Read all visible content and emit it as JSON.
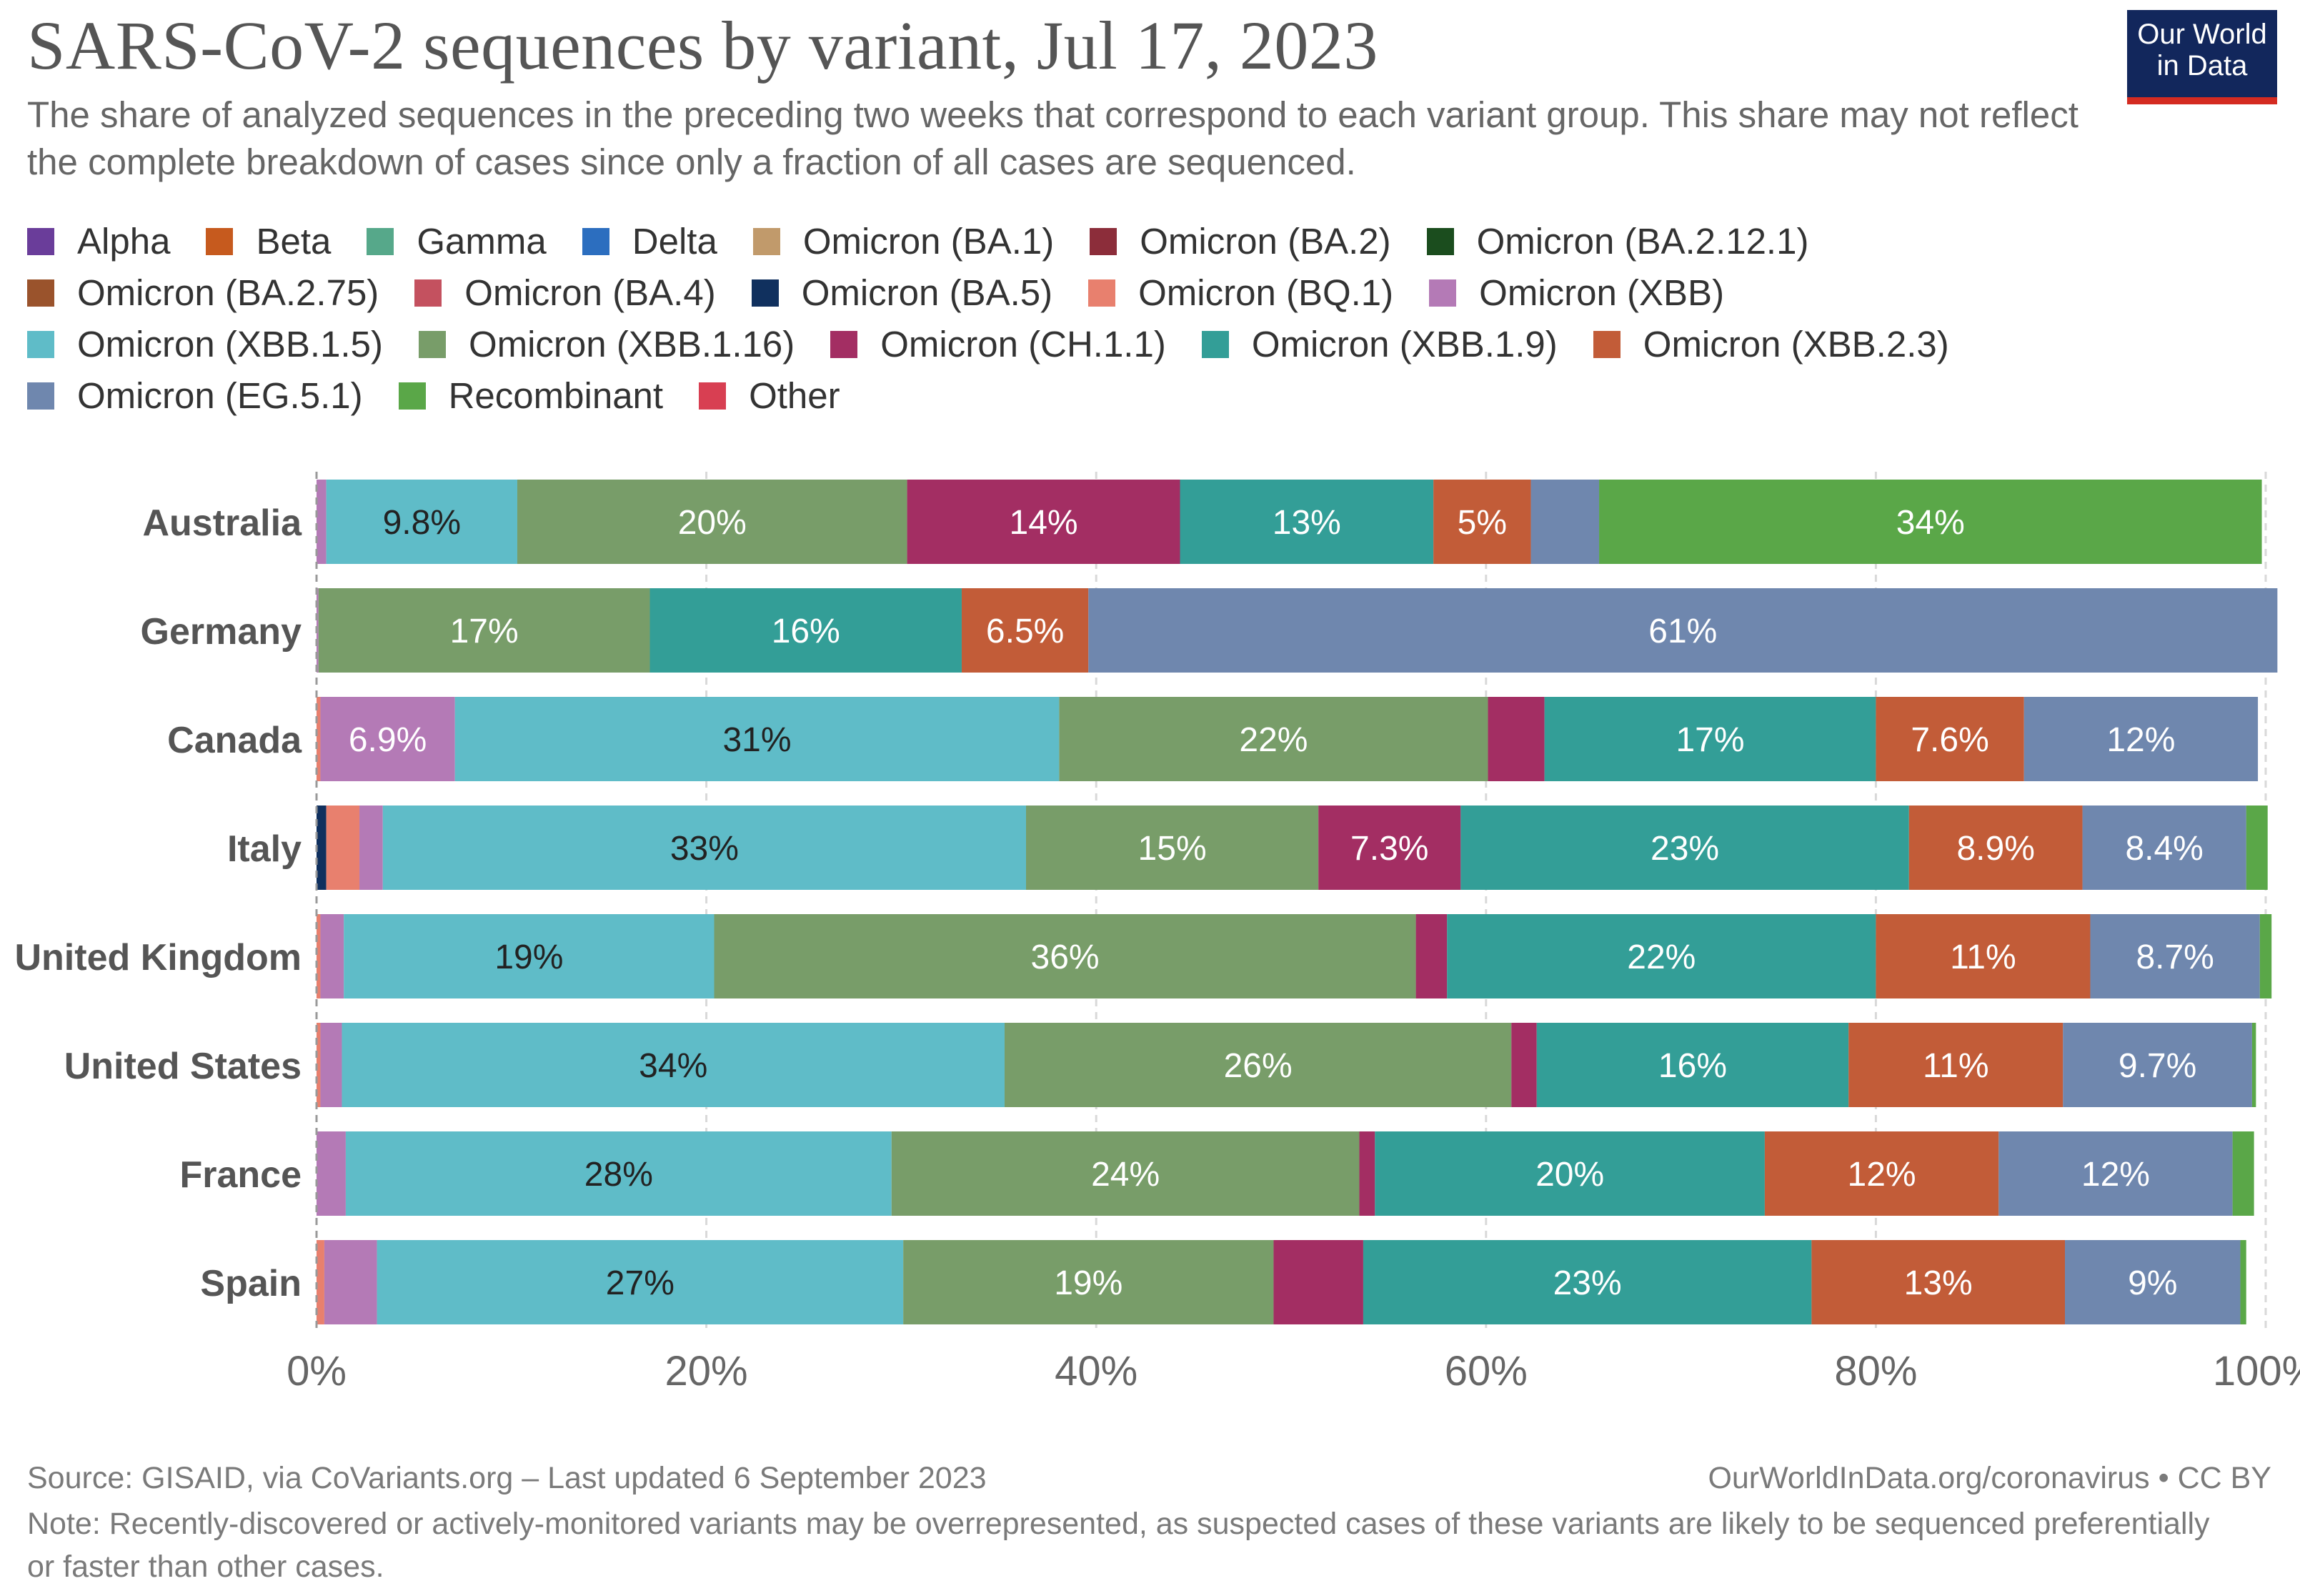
{
  "header": {
    "title": "SARS-CoV-2 sequences by variant, Jul 17, 2023",
    "subtitle": "The share of analyzed sequences in the preceding two weeks that correspond to each variant group. This share may not reflect the complete breakdown of cases since only a fraction of all cases are sequenced.",
    "logo_line1": "Our World",
    "logo_line2": "in Data"
  },
  "legend": [
    {
      "label": "Alpha",
      "color": "#6a3d9a"
    },
    {
      "label": "Beta",
      "color": "#c65a1e"
    },
    {
      "label": "Gamma",
      "color": "#56a88a"
    },
    {
      "label": "Delta",
      "color": "#2c6ebf"
    },
    {
      "label": "Omicron (BA.1)",
      "color": "#c19a6b"
    },
    {
      "label": "Omicron (BA.2)",
      "color": "#8c2d3a"
    },
    {
      "label": "Omicron (BA.2.12.1)",
      "color": "#1b4d1e"
    },
    {
      "label": "Omicron (BA.2.75)",
      "color": "#9a532c"
    },
    {
      "label": "Omicron (BA.4)",
      "color": "#c4515f"
    },
    {
      "label": "Omicron (BA.5)",
      "color": "#10305e"
    },
    {
      "label": "Omicron (BQ.1)",
      "color": "#e8806e"
    },
    {
      "label": "Omicron (XBB)",
      "color": "#b47ab6"
    },
    {
      "label": "Omicron (XBB.1.5)",
      "color": "#5fbcc8"
    },
    {
      "label": "Omicron (XBB.1.16)",
      "color": "#789d69"
    },
    {
      "label": "Omicron (CH.1.1)",
      "color": "#a32e63"
    },
    {
      "label": "Omicron (XBB.1.9)",
      "color": "#339e97"
    },
    {
      "label": "Omicron (XBB.2.3)",
      "color": "#c25c38"
    },
    {
      "label": "Omicron (EG.5.1)",
      "color": "#6f87ae"
    },
    {
      "label": "Recombinant",
      "color": "#5aa748"
    },
    {
      "label": "Other",
      "color": "#d83f52"
    }
  ],
  "chart_data": {
    "type": "bar",
    "orientation": "horizontal",
    "stacked": true,
    "title": "SARS-CoV-2 sequences by variant, Jul 17, 2023",
    "xlabel": "",
    "ylabel": "",
    "xlim": [
      0,
      100
    ],
    "x_ticks": [
      "0%",
      "20%",
      "40%",
      "60%",
      "80%",
      "100%"
    ],
    "grid": true,
    "categories": [
      "Australia",
      "Germany",
      "Canada",
      "Italy",
      "United Kingdom",
      "United States",
      "France",
      "Spain"
    ],
    "series": [
      {
        "name": "Omicron (BA.5)",
        "values": [
          0,
          0,
          0,
          0.5,
          0,
          0,
          0,
          0
        ]
      },
      {
        "name": "Omicron (BQ.1)",
        "values": [
          0,
          0,
          0.2,
          1.7,
          0.2,
          0.2,
          0,
          0.4
        ]
      },
      {
        "name": "Omicron (XBB)",
        "values": [
          0.5,
          0.1,
          6.9,
          1.2,
          1.2,
          1.1,
          1.5,
          2.7
        ]
      },
      {
        "name": "Omicron (XBB.1.5)",
        "values": [
          9.8,
          0,
          31,
          33,
          19,
          34,
          28,
          27
        ]
      },
      {
        "name": "Omicron (XBB.1.16)",
        "values": [
          20,
          17,
          22,
          15,
          36,
          26,
          24,
          19
        ]
      },
      {
        "name": "Omicron (CH.1.1)",
        "values": [
          14,
          0,
          2.9,
          7.3,
          1.6,
          1.3,
          0.8,
          4.6
        ]
      },
      {
        "name": "Omicron (XBB.1.9)",
        "values": [
          13,
          16,
          17,
          23,
          22,
          16,
          20,
          23
        ]
      },
      {
        "name": "Omicron (XBB.2.3)",
        "values": [
          5,
          6.5,
          7.6,
          8.9,
          11,
          11,
          12,
          13
        ]
      },
      {
        "name": "Omicron (EG.5.1)",
        "values": [
          3.5,
          61,
          12,
          8.4,
          8.7,
          9.7,
          12,
          9
        ]
      },
      {
        "name": "Recombinant",
        "values": [
          34,
          0,
          0,
          1.1,
          0.6,
          0.2,
          1.1,
          0.3
        ]
      },
      {
        "name": "Other",
        "values": [
          0,
          0,
          0,
          0,
          0,
          0,
          0,
          0
        ]
      }
    ],
    "data_labels": {
      "Australia": {
        "Omicron (XBB.1.5)": "9.8%",
        "Omicron (XBB.1.16)": "20%",
        "Omicron (CH.1.1)": "14%",
        "Omicron (XBB.1.9)": "13%",
        "Omicron (XBB.2.3)": "5%",
        "Recombinant": "34%"
      },
      "Germany": {
        "Omicron (XBB.1.16)": "17%",
        "Omicron (XBB.1.9)": "16%",
        "Omicron (XBB.2.3)": "6.5%",
        "Omicron (EG.5.1)": "61%"
      },
      "Canada": {
        "Omicron (XBB)": "6.9%",
        "Omicron (XBB.1.5)": "31%",
        "Omicron (XBB.1.16)": "22%",
        "Omicron (XBB.1.9)": "17%",
        "Omicron (XBB.2.3)": "7.6%",
        "Omicron (EG.5.1)": "12%"
      },
      "Italy": {
        "Omicron (XBB.1.5)": "33%",
        "Omicron (XBB.1.16)": "15%",
        "Omicron (CH.1.1)": "7.3%",
        "Omicron (XBB.1.9)": "23%",
        "Omicron (XBB.2.3)": "8.9%",
        "Omicron (EG.5.1)": "8.4%"
      },
      "United Kingdom": {
        "Omicron (XBB.1.5)": "19%",
        "Omicron (XBB.1.16)": "36%",
        "Omicron (XBB.1.9)": "22%",
        "Omicron (XBB.2.3)": "11%",
        "Omicron (EG.5.1)": "8.7%"
      },
      "United States": {
        "Omicron (XBB.1.5)": "34%",
        "Omicron (XBB.1.16)": "26%",
        "Omicron (XBB.1.9)": "16%",
        "Omicron (XBB.2.3)": "11%",
        "Omicron (EG.5.1)": "9.7%"
      },
      "France": {
        "Omicron (XBB.1.5)": "28%",
        "Omicron (XBB.1.16)": "24%",
        "Omicron (XBB.1.9)": "20%",
        "Omicron (XBB.2.3)": "12%",
        "Omicron (EG.5.1)": "12%"
      },
      "Spain": {
        "Omicron (XBB.1.5)": "27%",
        "Omicron (XBB.1.16)": "19%",
        "Omicron (XBB.1.9)": "23%",
        "Omicron (XBB.2.3)": "13%",
        "Omicron (EG.5.1)": "9%"
      }
    },
    "dark_label_series": [
      "Omicron (XBB.1.5)"
    ]
  },
  "footer": {
    "source": "Source: GISAID, via CoVariants.org – Last updated 6 September 2023",
    "url": "OurWorldInData.org/coronavirus • CC BY",
    "note": "Note: Recently-discovered or actively-monitored variants may be overrepresented, as suspected cases of these variants are likely to be sequenced preferentially or faster than other cases."
  }
}
